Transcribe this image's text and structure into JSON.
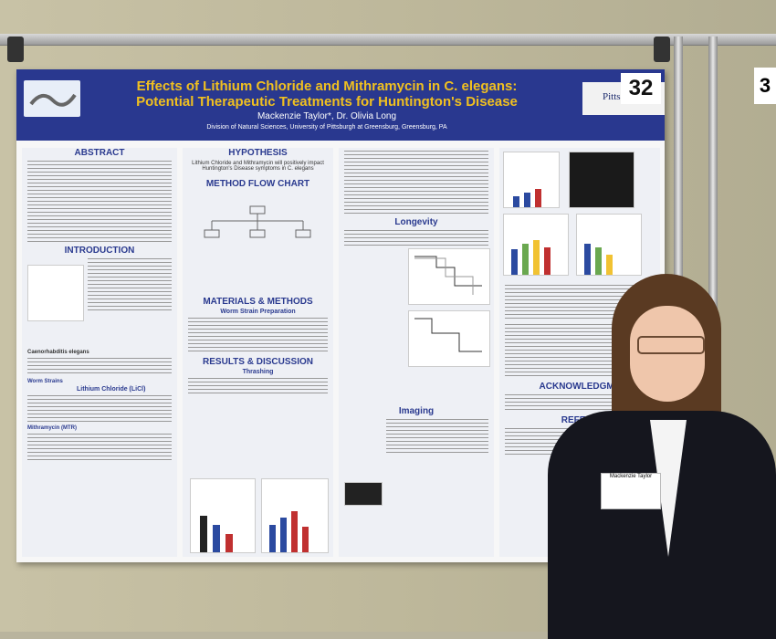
{
  "poster": {
    "title_line1": "Effects of Lithium Chloride and Mithramycin in C. elegans:",
    "title_line2": "Potential Therapeutic Treatments for Huntington's Disease",
    "authors": "Mackenzie Taylor*, Dr. Olivia Long",
    "affiliation": "Division of Natural Sciences, University of Pittsburgh at Greensburg, Greensburg, PA",
    "logo_text": "Pitts",
    "sections": {
      "abstract": "ABSTRACT",
      "introduction": "INTRODUCTION",
      "hypothesis": "HYPOTHESIS",
      "hypothesis_text": "Lithium Chloride and Mithramycin will positively impact Huntington's Disease symptoms in C. elegans",
      "method_flow": "METHOD FLOW CHART",
      "materials": "MATERIALS & METHODS",
      "worm_strain": "Worm Strain Preparation",
      "results": "RESULTS & DISCUSSION",
      "thrashing": "Thrashing",
      "longevity": "Longevity",
      "imaging": "Imaging",
      "acknowledgments": "ACKNOWLEDGME",
      "references": "REFERE",
      "lithium": "Lithium Chloride (LiCl)",
      "mithramycin": "Mithramycin (MTR)",
      "worm_strains": "Worm Strains",
      "c_elegans": "Caenorhabditis elegans"
    }
  },
  "board_number": "32",
  "board_number_partial": "3",
  "badge_text": "Mackenzie Taylor"
}
